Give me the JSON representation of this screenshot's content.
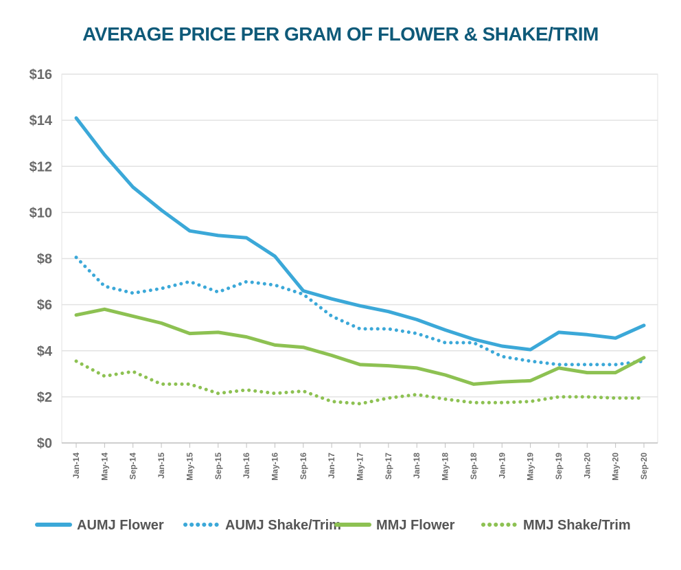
{
  "chart_data": {
    "type": "line",
    "title": "AVERAGE PRICE PER GRAM OF FLOWER & SHAKE/TRIM",
    "xlabel": "",
    "ylabel": "",
    "ylim": [
      0,
      16
    ],
    "y_ticks": [
      0,
      2,
      4,
      6,
      8,
      10,
      12,
      14,
      16
    ],
    "y_tick_labels": [
      "$0",
      "$2",
      "$4",
      "$6",
      "$8",
      "$10",
      "$12",
      "$14",
      "$16"
    ],
    "x_tick_labels": [
      "Jan-14",
      "May-14",
      "Sep-14",
      "Jan-15",
      "May-15",
      "Sep-15",
      "Jan-16",
      "May-16",
      "Sep-16",
      "Jan-17",
      "May-17",
      "Sep-17",
      "Jan-18",
      "May-18",
      "Sep-18",
      "Jan-19",
      "May-19",
      "Sep-19",
      "Jan-20",
      "May-20",
      "Sep-20"
    ],
    "grid": "horizontal",
    "legend_position": "bottom",
    "series": [
      {
        "name": "AUMJ Flower",
        "color": "#3ba8d8",
        "style": "solid",
        "values": [
          14.1,
          12.5,
          11.1,
          10.1,
          9.2,
          9.0,
          8.9,
          8.1,
          6.6,
          6.25,
          5.95,
          5.7,
          5.35,
          4.9,
          4.5,
          4.2,
          4.05,
          4.8,
          4.7,
          4.55,
          5.1
        ]
      },
      {
        "name": "AUMJ Shake/Trim",
        "color": "#3ba8d8",
        "style": "dotted",
        "values": [
          8.05,
          6.8,
          6.5,
          6.7,
          7.0,
          6.55,
          7.0,
          6.85,
          6.45,
          5.5,
          4.95,
          4.95,
          4.75,
          4.35,
          4.35,
          3.75,
          3.55,
          3.4,
          3.4,
          3.4,
          3.55
        ]
      },
      {
        "name": "MMJ Flower",
        "color": "#8dc152",
        "style": "solid",
        "values": [
          5.55,
          5.8,
          5.5,
          5.2,
          4.75,
          4.8,
          4.6,
          4.25,
          4.15,
          3.8,
          3.4,
          3.35,
          3.25,
          2.95,
          2.55,
          2.65,
          2.7,
          3.25,
          3.05,
          3.05,
          3.7
        ]
      },
      {
        "name": "MMJ Shake/Trim",
        "color": "#8dc152",
        "style": "dotted",
        "values": [
          3.55,
          2.9,
          3.1,
          2.55,
          2.55,
          2.15,
          2.3,
          2.15,
          2.25,
          1.8,
          1.7,
          1.95,
          2.1,
          1.9,
          1.75,
          1.75,
          1.8,
          2.0,
          2.0,
          1.95,
          1.95
        ]
      }
    ]
  }
}
